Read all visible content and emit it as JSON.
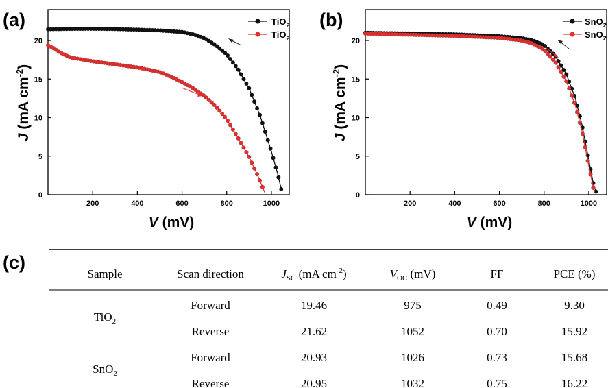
{
  "chart_data": [
    {
      "type": "line",
      "panel_label": "(a)",
      "xlabel": {
        "italic": "V",
        "rest": " (mV)"
      },
      "ylabel": {
        "italic": "J",
        "rest": " (mA cm",
        "sup": "-2",
        "close": ")"
      },
      "xlim": [
        0,
        1080
      ],
      "ylim": [
        0,
        24
      ],
      "xticks": [
        "200",
        "400",
        "600",
        "800",
        "1000"
      ],
      "yticks": [
        "0",
        "5",
        "10",
        "15",
        "20"
      ],
      "legend_position": "top-right",
      "series": [
        {
          "name": {
            "base": "TiO",
            "sub": "2"
          },
          "color": "#111111",
          "scan": "reverse",
          "points": [
            [
              0,
              21.45
            ],
            [
              100,
              21.5
            ],
            [
              200,
              21.52
            ],
            [
              300,
              21.48
            ],
            [
              400,
              21.4
            ],
            [
              500,
              21.3
            ],
            [
              600,
              21.1
            ],
            [
              650,
              20.8
            ],
            [
              700,
              20.3
            ],
            [
              750,
              19.4
            ],
            [
              800,
              18.2
            ],
            [
              850,
              16.3
            ],
            [
              900,
              13.8
            ],
            [
              950,
              10.2
            ],
            [
              1000,
              5.6
            ],
            [
              1030,
              2.5
            ],
            [
              1045,
              0.6
            ]
          ]
        },
        {
          "name": {
            "base": "TiO",
            "sub": "2"
          },
          "color": "#e03030",
          "scan": "forward",
          "points": [
            [
              0,
              19.4
            ],
            [
              25,
              19.0
            ],
            [
              50,
              18.5
            ],
            [
              100,
              17.8
            ],
            [
              200,
              17.3
            ],
            [
              300,
              16.9
            ],
            [
              400,
              16.5
            ],
            [
              500,
              15.9
            ],
            [
              550,
              15.3
            ],
            [
              600,
              14.6
            ],
            [
              650,
              13.8
            ],
            [
              700,
              12.8
            ],
            [
              750,
              11.5
            ],
            [
              800,
              9.8
            ],
            [
              850,
              7.4
            ],
            [
              900,
              4.9
            ],
            [
              940,
              2.4
            ],
            [
              970,
              0.3
            ]
          ]
        }
      ]
    },
    {
      "type": "line",
      "panel_label": "(b)",
      "xlabel": {
        "italic": "V",
        "rest": " (mV)"
      },
      "ylabel": {
        "italic": "J",
        "rest": " (mA cm",
        "sup": "-2",
        "close": ")"
      },
      "xlim": [
        0,
        1080
      ],
      "ylim": [
        0,
        24
      ],
      "xticks": [
        "200",
        "400",
        "600",
        "800",
        "1000"
      ],
      "yticks": [
        "0",
        "5",
        "10",
        "15",
        "20"
      ],
      "legend_position": "top-right",
      "series": [
        {
          "name": {
            "base": "SnO",
            "sub": "2"
          },
          "color": "#111111",
          "scan": "reverse",
          "points": [
            [
              0,
              21.0
            ],
            [
              200,
              20.9
            ],
            [
              400,
              20.8
            ],
            [
              600,
              20.55
            ],
            [
              700,
              20.3
            ],
            [
              750,
              20.0
            ],
            [
              800,
              19.4
            ],
            [
              850,
              18.0
            ],
            [
              900,
              15.6
            ],
            [
              940,
              12.5
            ],
            [
              970,
              9.0
            ],
            [
              1000,
              4.5
            ],
            [
              1020,
              1.5
            ],
            [
              1032,
              0.4
            ]
          ]
        },
        {
          "name": {
            "base": "SnO",
            "sub": "2"
          },
          "color": "#e03030",
          "scan": "forward",
          "points": [
            [
              0,
              20.9
            ],
            [
              200,
              20.75
            ],
            [
              400,
              20.6
            ],
            [
              600,
              20.35
            ],
            [
              700,
              20.0
            ],
            [
              750,
              19.6
            ],
            [
              800,
              18.8
            ],
            [
              850,
              17.2
            ],
            [
              900,
              14.7
            ],
            [
              940,
              11.6
            ],
            [
              970,
              8.2
            ],
            [
              1000,
              3.8
            ],
            [
              1020,
              0.9
            ],
            [
              1026,
              0.3
            ]
          ]
        }
      ]
    }
  ],
  "panel_c_label": "(c)",
  "table": {
    "headers": {
      "sample": "Sample",
      "scan": "Scan direction",
      "jsc": {
        "italic": "J",
        "sub": "SC",
        "rest": " (mA cm",
        "sup": "-2",
        "close": ")"
      },
      "voc": {
        "italic": "V",
        "sub": "OC",
        "rest": " (mV)"
      },
      "ff": "FF",
      "pce": "PCE (%)"
    },
    "groups": [
      {
        "sample": {
          "base": "TiO",
          "sub": "2"
        },
        "rows": [
          {
            "scan": "Forward",
            "jsc": "19.46",
            "voc": "975",
            "ff": "0.49",
            "pce": "9.30"
          },
          {
            "scan": "Reverse",
            "jsc": "21.62",
            "voc": "1052",
            "ff": "0.70",
            "pce": "15.92"
          }
        ]
      },
      {
        "sample": {
          "base": "SnO",
          "sub": "2"
        },
        "rows": [
          {
            "scan": "Forward",
            "jsc": "20.93",
            "voc": "1026",
            "ff": "0.73",
            "pce": "15.68"
          },
          {
            "scan": "Reverse",
            "jsc": "20.95",
            "voc": "1032",
            "ff": "0.75",
            "pce": "16.22"
          }
        ]
      }
    ]
  }
}
